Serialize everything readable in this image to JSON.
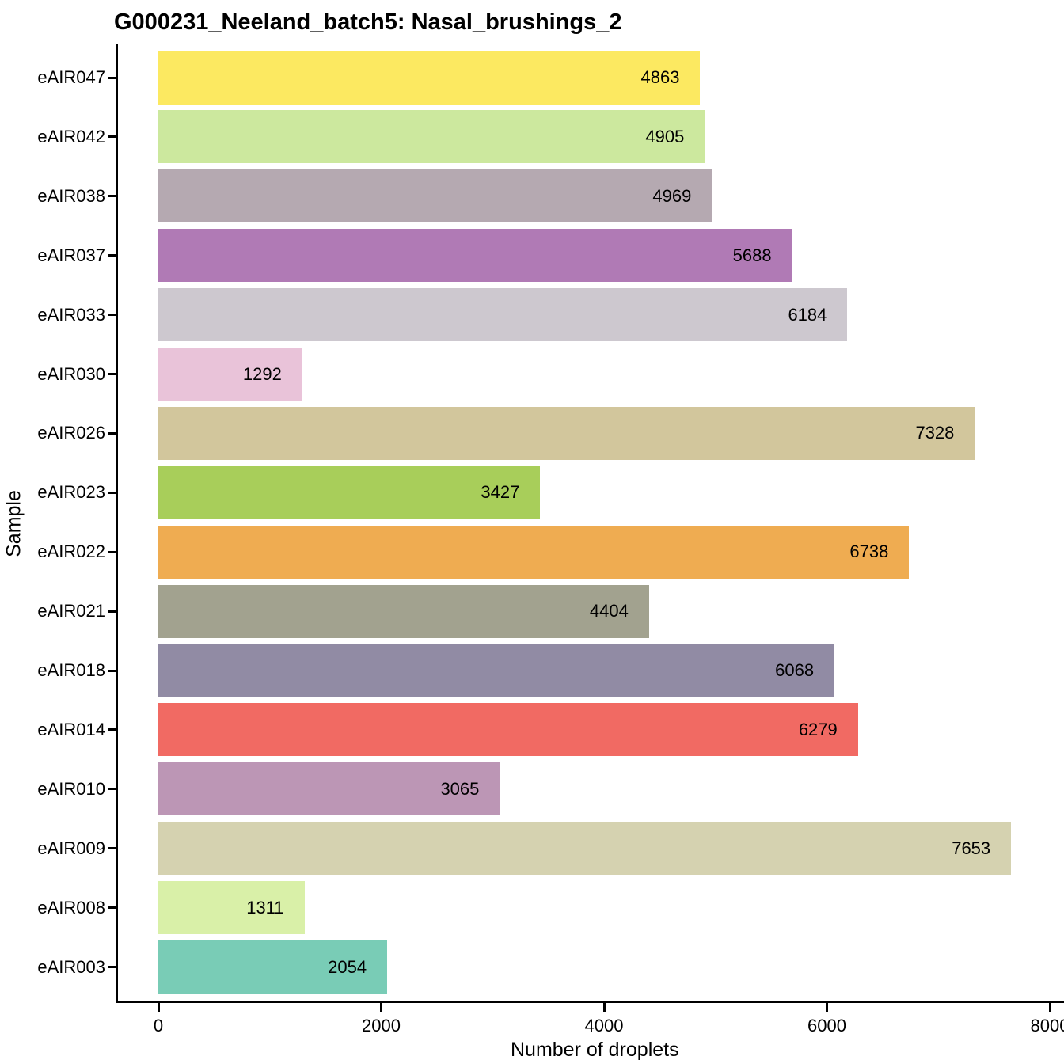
{
  "chart_data": {
    "type": "bar",
    "orientation": "horizontal",
    "title": "G000231_Neeland_batch5: Nasal_brushings_2",
    "xlabel": "Number of droplets",
    "ylabel": "Sample",
    "xlim": [
      0,
      8000
    ],
    "x_tick_values": [
      0,
      2000,
      4000,
      6000,
      8000
    ],
    "x_tick_labels": [
      "0",
      "2000",
      "4000",
      "6000",
      "8000"
    ],
    "grid": false,
    "legend": "none",
    "axis_color": "#000000",
    "bar_label_color": "#000000",
    "categories": [
      "eAIR047",
      "eAIR042",
      "eAIR038",
      "eAIR037",
      "eAIR033",
      "eAIR030",
      "eAIR026",
      "eAIR023",
      "eAIR022",
      "eAIR021",
      "eAIR018",
      "eAIR014",
      "eAIR010",
      "eAIR009",
      "eAIR008",
      "eAIR003"
    ],
    "values": [
      4863,
      4905,
      4969,
      5688,
      6184,
      1292,
      7328,
      3427,
      6738,
      4404,
      6068,
      6279,
      3065,
      7653,
      1311,
      2054
    ],
    "series_top_to_bottom": [
      {
        "category": "eAIR047",
        "value": 4863,
        "label": "4863",
        "color": "#FCE961"
      },
      {
        "category": "eAIR042",
        "value": 4905,
        "label": "4905",
        "color": "#CCE89E"
      },
      {
        "category": "eAIR038",
        "value": 4969,
        "label": "4969",
        "color": "#B5A9B1"
      },
      {
        "category": "eAIR037",
        "value": 5688,
        "label": "5688",
        "color": "#B07AB5"
      },
      {
        "category": "eAIR033",
        "value": 6184,
        "label": "6184",
        "color": "#CDC8CF"
      },
      {
        "category": "eAIR030",
        "value": 1292,
        "label": "1292",
        "color": "#E9C3D9"
      },
      {
        "category": "eAIR026",
        "value": 7328,
        "label": "7328",
        "color": "#D2C69C"
      },
      {
        "category": "eAIR023",
        "value": 3427,
        "label": "3427",
        "color": "#A8CE5A"
      },
      {
        "category": "eAIR022",
        "value": 6738,
        "label": "6738",
        "color": "#EFAC51"
      },
      {
        "category": "eAIR021",
        "value": 4404,
        "label": "4404",
        "color": "#A2A28F"
      },
      {
        "category": "eAIR018",
        "value": 6068,
        "label": "6068",
        "color": "#918BA4"
      },
      {
        "category": "eAIR014",
        "value": 6279,
        "label": "6279",
        "color": "#F16A63"
      },
      {
        "category": "eAIR010",
        "value": 3065,
        "label": "3065",
        "color": "#BC96B5"
      },
      {
        "category": "eAIR009",
        "value": 7653,
        "label": "7653",
        "color": "#D5D2B0"
      },
      {
        "category": "eAIR008",
        "value": 1311,
        "label": "1311",
        "color": "#D9F0A8"
      },
      {
        "category": "eAIR003",
        "value": 2054,
        "label": "2054",
        "color": "#79CCB6"
      }
    ]
  }
}
